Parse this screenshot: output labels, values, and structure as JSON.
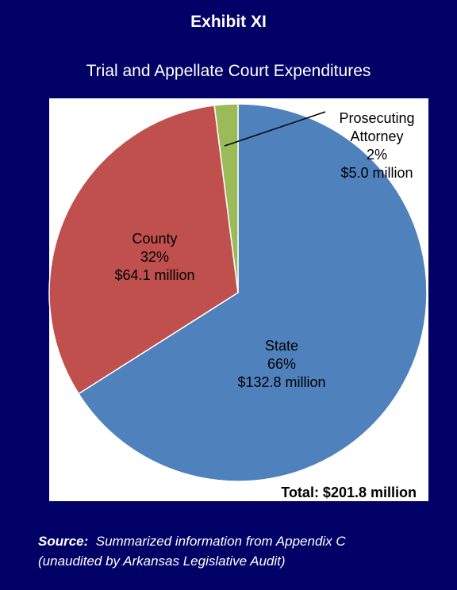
{
  "chart_data": {
    "type": "pie",
    "title": "Exhibit XI",
    "subtitle": "Trial and Appellate Court Expenditures",
    "categories": [
      "State",
      "County",
      "Prosecuting Attorney"
    ],
    "values": [
      66,
      32,
      2
    ],
    "value_labels": [
      "66%",
      "32%",
      "2%"
    ],
    "amounts": [
      "$132.8 million",
      "$64.1 million",
      "$5.0 million"
    ],
    "colors": [
      "#4f81bd",
      "#c0504d",
      "#9bbb59"
    ],
    "total": "Total: $201.8 million",
    "source_label": "Source:",
    "source_lines": [
      "Summarized information from Appendix C",
      "(unaudited by Arkansas Legislative Audit)"
    ]
  }
}
